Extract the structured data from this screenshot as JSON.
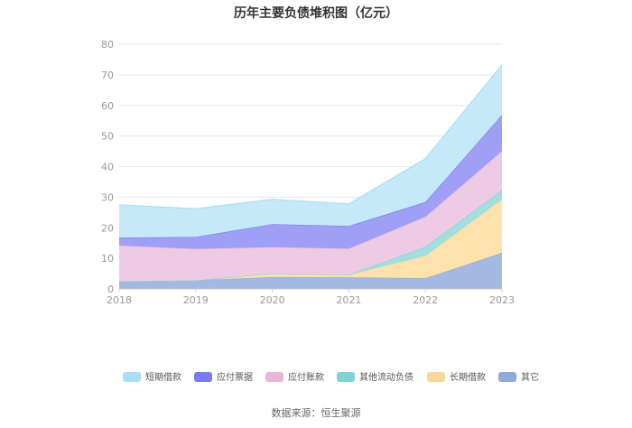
{
  "chart_data": {
    "type": "area",
    "stacked": true,
    "title": "历年主要负债堆积图（亿元）",
    "x": [
      "2018",
      "2019",
      "2020",
      "2021",
      "2022",
      "2023"
    ],
    "ylim": [
      0,
      80
    ],
    "yticks": [
      "0",
      "10",
      "20",
      "30",
      "40",
      "50",
      "60",
      "70",
      "80"
    ],
    "grid": true,
    "legend_position": "bottom",
    "series": [
      {
        "name": "其它",
        "color": "#a3b9e2",
        "values": [
          2.5,
          2.8,
          3.9,
          3.8,
          3.5,
          11.8
        ]
      },
      {
        "name": "长期借款",
        "color": "#fde2ae",
        "values": [
          0.0,
          0.0,
          1.2,
          0.8,
          7.3,
          17.5
        ]
      },
      {
        "name": "其他流动负债",
        "color": "#a2dedf",
        "values": [
          0.0,
          0.0,
          0.0,
          0.0,
          3.0,
          3.0
        ]
      },
      {
        "name": "应付账款",
        "color": "#eecbe4",
        "values": [
          11.7,
          10.3,
          8.6,
          8.6,
          9.8,
          12.8
        ]
      },
      {
        "name": "应付票据",
        "color": "#9f9ff5",
        "values": [
          2.6,
          3.9,
          7.5,
          7.4,
          4.8,
          11.8
        ]
      },
      {
        "name": "短期借款",
        "color": "#c5e9f9",
        "values": [
          10.7,
          9.2,
          8.1,
          7.2,
          14.2,
          16.4
        ]
      }
    ]
  },
  "legend": {
    "items": [
      {
        "label": "短期借款",
        "color": "#a9dff9"
      },
      {
        "label": "应付票据",
        "color": "#7b7bf0"
      },
      {
        "label": "应付账款",
        "color": "#ebb4dc"
      },
      {
        "label": "其他流动负债",
        "color": "#7fd3d6"
      },
      {
        "label": "长期借款",
        "color": "#fcd898"
      },
      {
        "label": "其它",
        "color": "#8ea9dc"
      }
    ]
  },
  "source_text": "数据来源：恒生聚源"
}
